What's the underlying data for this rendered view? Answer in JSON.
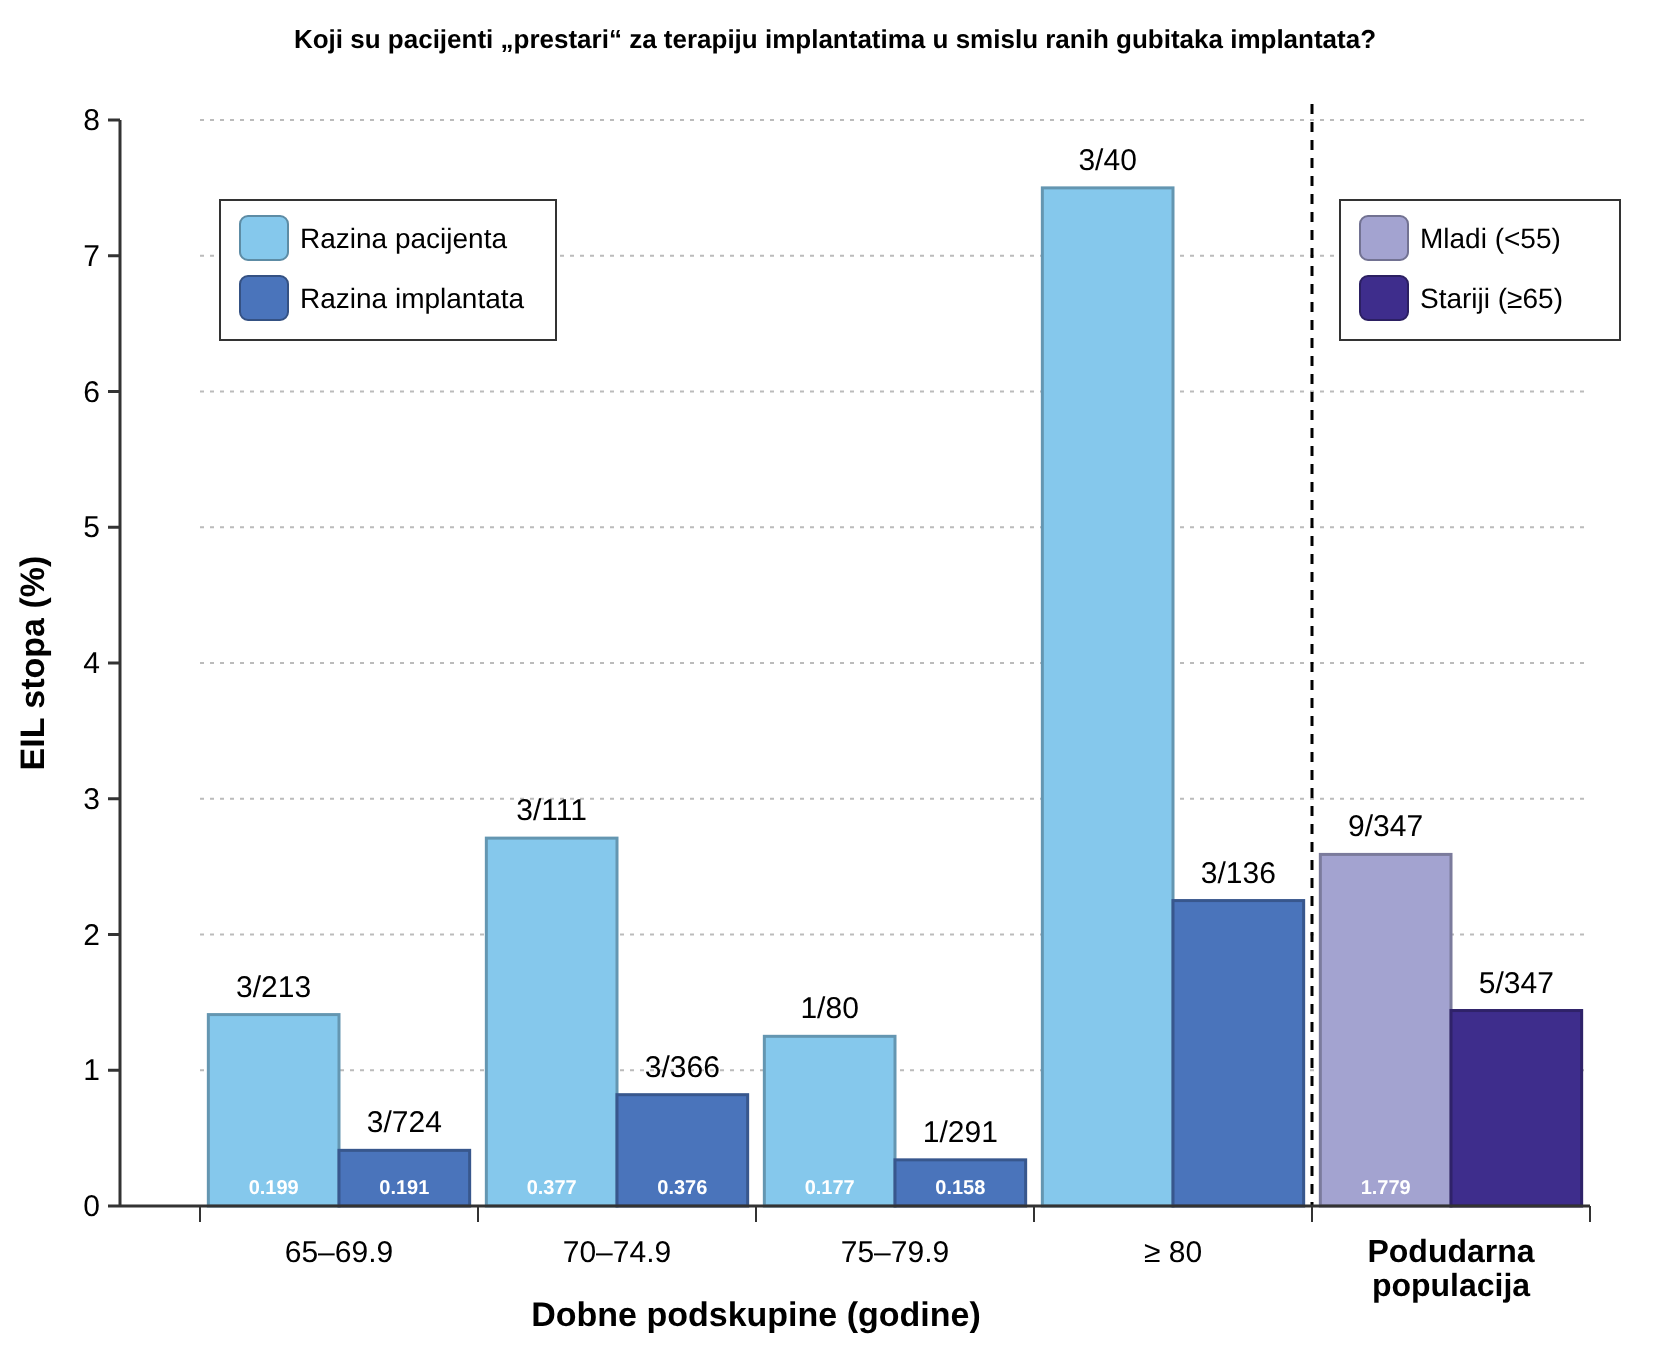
{
  "chart_data": {
    "type": "bar",
    "title": "Koji su pacijenti „prestari“ za terapiju implantatima u smislu ranih gubitaka implantata?",
    "xlabel": "Dobne podskupine (godine)",
    "ylabel": "EIL stopa (%)",
    "categories": [
      "65–69.9",
      "70–74.9",
      "75–79.9",
      "≥ 80",
      "Podudarna populacija"
    ],
    "series": [
      {
        "name": "Razina pacijenta",
        "color": "#85c8ec",
        "values": [
          1.41,
          2.71,
          1.25,
          7.5,
          null
        ],
        "value_labels": [
          "3/213",
          "3/111",
          "1/80",
          "3/40",
          null
        ]
      },
      {
        "name": "Razina implantata",
        "color": "#4a74bb",
        "values": [
          0.41,
          0.82,
          0.34,
          2.25,
          null
        ],
        "value_labels": [
          "3/724",
          "3/366",
          "1/291",
          "3/136",
          null
        ]
      },
      {
        "name": "Mladi (<55)",
        "color": "#a3a3d0",
        "values": [
          null,
          null,
          null,
          null,
          2.59
        ],
        "value_labels": [
          null,
          null,
          null,
          null,
          "9/347"
        ]
      },
      {
        "name": "Stariji (≥65)",
        "color": "#3e2d8c",
        "values": [
          null,
          null,
          null,
          null,
          1.44
        ],
        "value_labels": [
          null,
          null,
          null,
          null,
          "5/347"
        ]
      }
    ],
    "annotations": [
      {
        "text": "0.199",
        "x": "65–69.9",
        "y": 0
      },
      {
        "text": "0.191",
        "x": "65–69.9",
        "y": 0
      },
      {
        "text": "0.377",
        "x": "70–74.9",
        "y": 0
      },
      {
        "text": "0.376",
        "x": "70–74.9",
        "y": 0
      },
      {
        "text": "0.177",
        "x": "75–79.9",
        "y": 0
      },
      {
        "text": "0.158",
        "x": "75–79.9",
        "y": 0
      },
      {
        "text": "1.779",
        "x": "Podudarna populacija",
        "y": 0
      }
    ],
    "ylim": [
      0,
      8
    ],
    "yticks": [
      0,
      1,
      2,
      3,
      4,
      5,
      6,
      7,
      8
    ],
    "grid": "y",
    "legend": "top"
  }
}
